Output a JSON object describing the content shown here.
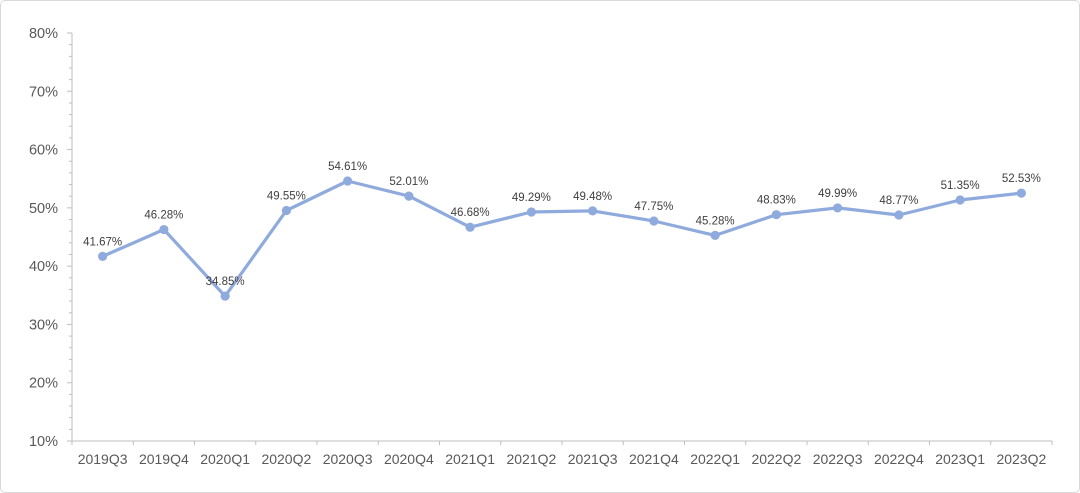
{
  "chart_data": {
    "type": "line",
    "title": "",
    "xlabel": "",
    "ylabel": "",
    "categories": [
      "2019Q3",
      "2019Q4",
      "2020Q1",
      "2020Q2",
      "2020Q3",
      "2020Q4",
      "2021Q1",
      "2021Q2",
      "2021Q3",
      "2021Q4",
      "2022Q1",
      "2022Q2",
      "2022Q3",
      "2022Q4",
      "2023Q1",
      "2023Q2"
    ],
    "values": [
      41.67,
      46.28,
      34.85,
      49.55,
      54.61,
      52.01,
      46.68,
      49.29,
      49.48,
      47.75,
      45.28,
      48.83,
      49.99,
      48.77,
      51.35,
      52.53
    ],
    "data_labels": [
      "41.67%",
      "46.28%",
      "34.85%",
      "49.55%",
      "54.61%",
      "52.01%",
      "46.68%",
      "49.29%",
      "49.48%",
      "47.75%",
      "45.28%",
      "48.83%",
      "49.99%",
      "48.77%",
      "51.35%",
      "52.53%"
    ],
    "y_tick_labels": [
      "10%",
      "20%",
      "30%",
      "40%",
      "50%",
      "60%",
      "70%",
      "80%"
    ],
    "y_tick_values": [
      10,
      20,
      30,
      40,
      50,
      60,
      70,
      80
    ],
    "ylim": [
      10,
      80
    ],
    "y_major_step": 10,
    "y_minor_step": 2,
    "grid": false,
    "legend_position": "none",
    "colors": {
      "line": "#8FAADC",
      "marker": "#8FAADC",
      "axis": "#BFBFBF",
      "data_label_text": "#404040",
      "tick_label_text": "#595959",
      "card_border": "#D9D9D9",
      "background": "#FFFFFF"
    }
  }
}
